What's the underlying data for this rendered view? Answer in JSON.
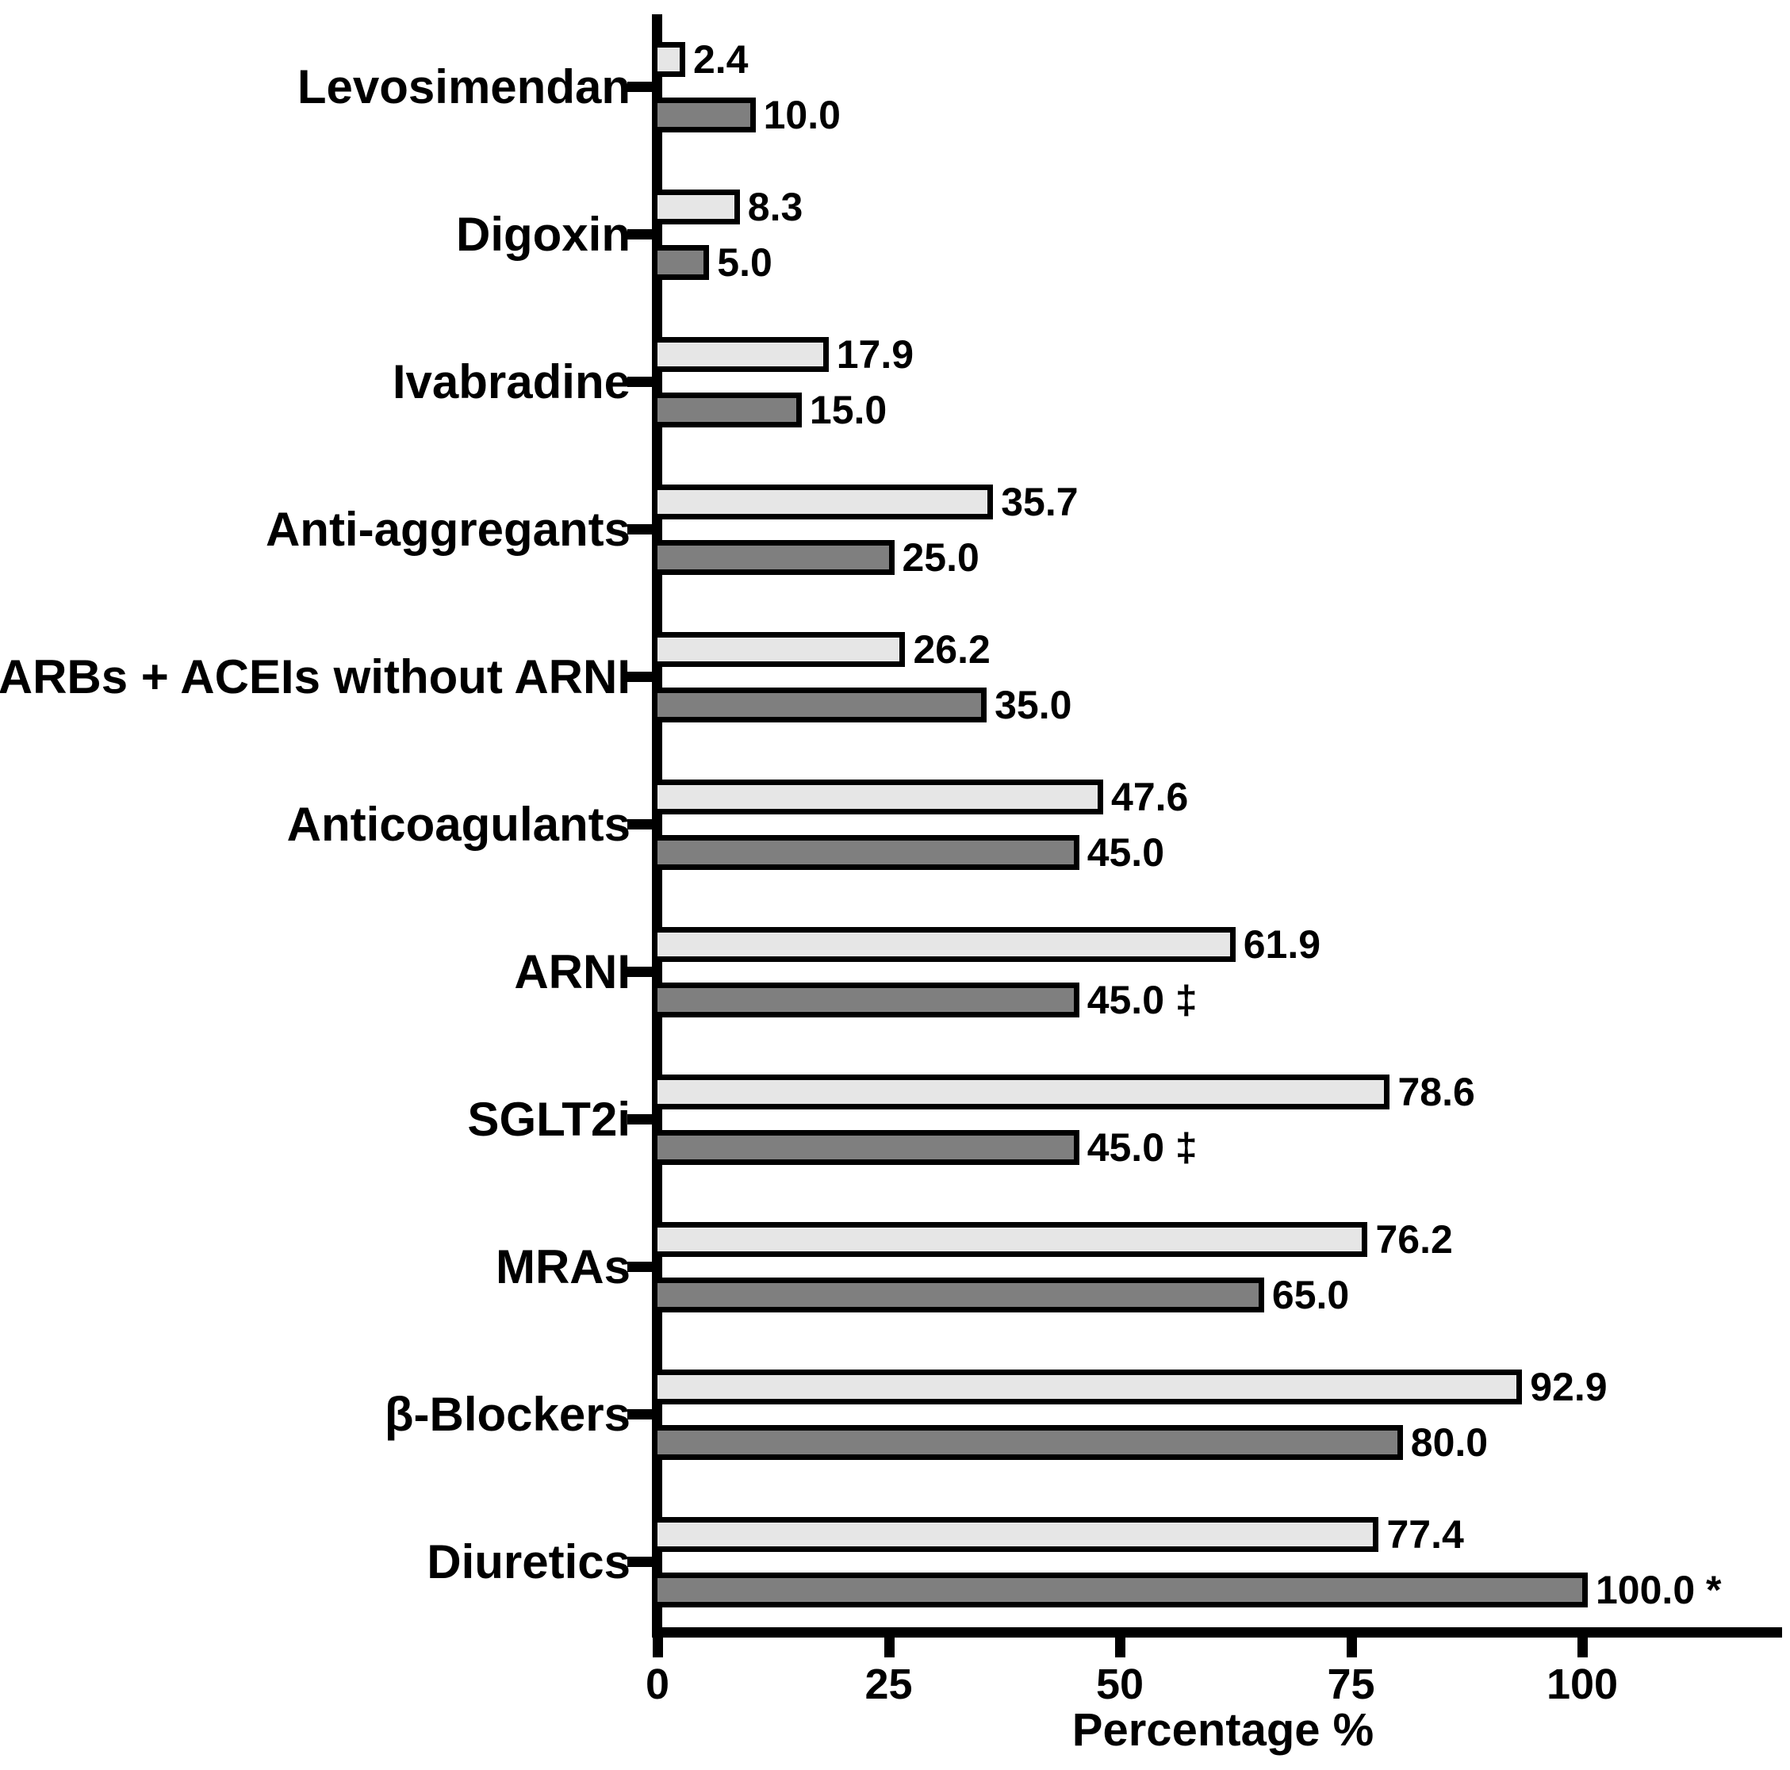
{
  "page": {
    "background_color": "#ffffff",
    "text_color": "#000000"
  },
  "chart_data": {
    "type": "bar",
    "orientation": "horizontal",
    "title": "",
    "xlabel": "Percentage %",
    "ylabel": "",
    "xlim": [
      0,
      119
    ],
    "grid": false,
    "legend": "none",
    "x_ticks": [
      {
        "value": 0,
        "label": "0"
      },
      {
        "value": 25,
        "label": "25"
      },
      {
        "value": 50,
        "label": "50"
      },
      {
        "value": 75,
        "label": "75"
      },
      {
        "value": 100,
        "label": "100"
      }
    ],
    "categories": [
      "Levosimendan",
      "Digoxin",
      "Ivabradine",
      "Anti-aggregants",
      "ARBs + ACEIs without ARNI",
      "Anticoagulants",
      "ARNI",
      "SGLT2i",
      "MRAs",
      "β-Blockers",
      "Diuretics"
    ],
    "series": [
      {
        "key": "light-gray-bars",
        "color": "#e6e6e6",
        "outline_color": "#000000",
        "values": [
          2.4,
          8.3,
          17.9,
          35.7,
          26.2,
          47.6,
          61.9,
          78.6,
          76.2,
          92.9,
          77.4
        ],
        "labels": [
          "2.4",
          "8.3",
          "17.9",
          "35.7",
          "26.2",
          "47.6",
          "61.9",
          "78.6",
          "76.2",
          "92.9",
          "77.4"
        ]
      },
      {
        "key": "dark-gray-bars",
        "color": "#7f7f7f",
        "outline_color": "#000000",
        "values": [
          10.0,
          5.0,
          15.0,
          25.0,
          35.0,
          45.0,
          45.0,
          45.0,
          65.0,
          80.0,
          100.0
        ],
        "labels": [
          "10.0",
          "5.0",
          "15.0",
          "25.0",
          "35.0",
          "45.0",
          "45.0 ‡",
          "45.0 ‡",
          "65.0",
          "80.0",
          "100.0 *"
        ]
      }
    ],
    "annotations": {
      "double_dagger_symbol": "‡",
      "double_dagger_on": "SGLT2i dark bar",
      "asterisk_symbol": "*",
      "asterisk_on": "Diuretics dark bar"
    }
  }
}
